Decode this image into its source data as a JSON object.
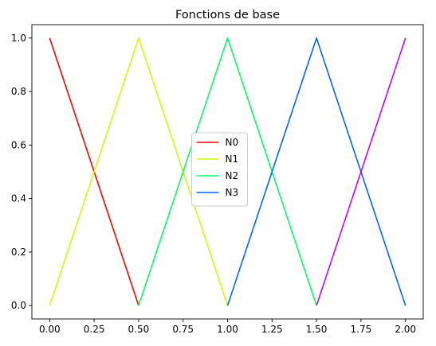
{
  "chart_data": {
    "type": "line",
    "title": "Fonctions de base",
    "xlabel": "",
    "ylabel": "",
    "xlim": [
      -0.1,
      2.1
    ],
    "ylim": [
      -0.05,
      1.05
    ],
    "xticks": [
      0.0,
      0.25,
      0.5,
      0.75,
      1.0,
      1.25,
      1.5,
      1.75,
      2.0
    ],
    "xtick_labels": [
      "0.00",
      "0.25",
      "0.50",
      "0.75",
      "1.00",
      "1.25",
      "1.50",
      "1.75",
      "2.00"
    ],
    "yticks": [
      0.0,
      0.2,
      0.4,
      0.6,
      0.8,
      1.0
    ],
    "ytick_labels": [
      "0.0",
      "0.2",
      "0.4",
      "0.6",
      "0.8",
      "1.0"
    ],
    "grid": false,
    "legend_position": "center",
    "series": [
      {
        "name": "N0",
        "color": "#ff0000",
        "x": [
          0.0,
          0.5
        ],
        "y": [
          1.0,
          0.0
        ]
      },
      {
        "name": "N1",
        "color": "#ccff00",
        "x": [
          0.0,
          0.5,
          1.0
        ],
        "y": [
          0.0,
          1.0,
          0.0
        ]
      },
      {
        "name": "N2",
        "color": "#00ff66",
        "x": [
          0.5,
          1.0,
          1.5
        ],
        "y": [
          0.0,
          1.0,
          0.0
        ]
      },
      {
        "name": "N3",
        "color": "#0066ff",
        "x": [
          1.0,
          1.5,
          2.0
        ],
        "y": [
          0.0,
          1.0,
          0.0
        ]
      },
      {
        "name": "",
        "color": "#cc00ff",
        "x": [
          1.5,
          2.0
        ],
        "y": [
          0.0,
          1.0
        ]
      }
    ]
  }
}
